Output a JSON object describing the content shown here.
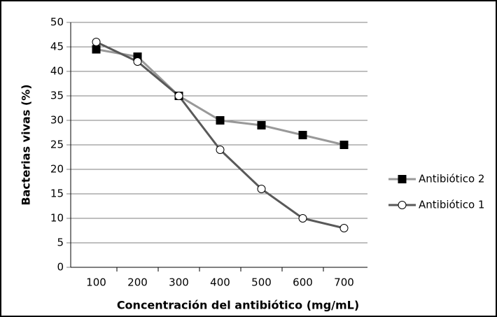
{
  "chart_data": {
    "type": "line",
    "xlabel": "Concentración del antibiótico (mg/mL)",
    "ylabel": "Bacterias vivas (%)",
    "categories": [
      "100",
      "200",
      "300",
      "400",
      "500",
      "600",
      "700"
    ],
    "series": [
      {
        "name": "Antibiótico 2",
        "color": "#999999",
        "marker": "square",
        "values": [
          44.5,
          43,
          35,
          30,
          29,
          27,
          25
        ]
      },
      {
        "name": "Antibiótico 1",
        "color": "#595959",
        "marker": "circle",
        "values": [
          46,
          42,
          35,
          24,
          16,
          10,
          8
        ]
      }
    ],
    "ylim": [
      0,
      50
    ],
    "yticks": [
      0,
      5,
      10,
      15,
      20,
      25,
      30,
      35,
      40,
      45,
      50
    ],
    "grid": true,
    "legend": "right"
  }
}
